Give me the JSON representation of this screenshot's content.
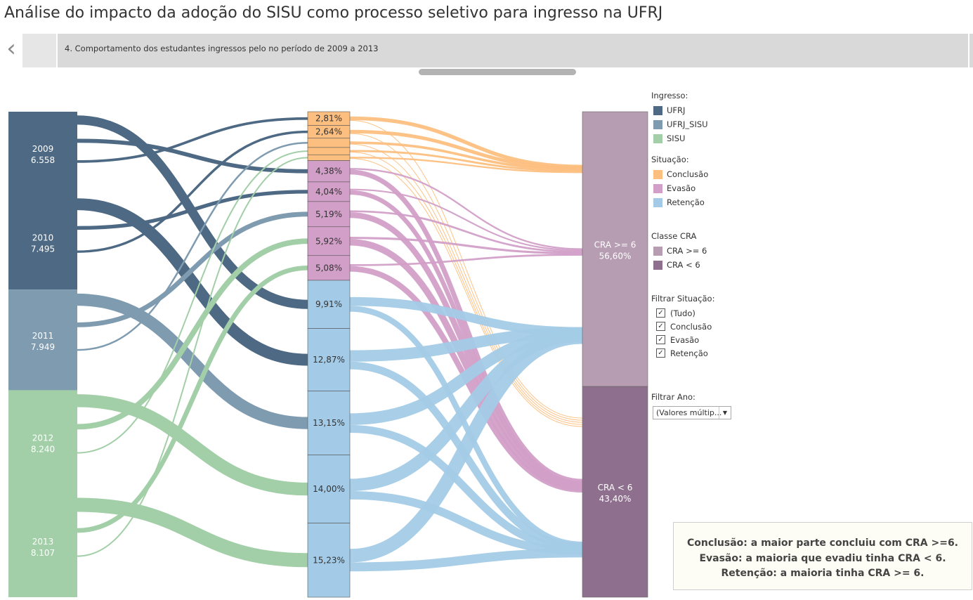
{
  "page": {
    "title": "Análise do impacto da adoção do SISU como processo seletivo para ingresso na UFRJ"
  },
  "story": {
    "back_icon": "chevron-left-icon",
    "current_point": "4. Comportamento dos estudantes ingressos pelo no período de 2009 a 2013"
  },
  "colors": {
    "UFRJ": "#4e6983",
    "UFRJ_SISU": "#7f9bb0",
    "SISU": "#a2cfa7",
    "Conclusao": "#fdbf7f",
    "Evasao": "#d29fc8",
    "Retencao": "#a3cbe7",
    "CRA_ge6": "#b69db2",
    "CRA_lt6": "#8e6f8d"
  },
  "chart_data": {
    "type": "sankey",
    "years": [
      {
        "year": "2009",
        "count": "6.558",
        "ingresso": "UFRJ"
      },
      {
        "year": "2010",
        "count": "7.495",
        "ingresso": "UFRJ"
      },
      {
        "year": "2011",
        "count": "7.949",
        "ingresso": "UFRJ_SISU"
      },
      {
        "year": "2012",
        "count": "8.240",
        "ingresso": "SISU"
      },
      {
        "year": "2013",
        "count": "8.107",
        "ingresso": "SISU"
      }
    ],
    "ingresso_segments": [
      {
        "ingresso": "UFRJ",
        "years": [
          "2009",
          "2010"
        ]
      },
      {
        "ingresso": "UFRJ_SISU",
        "years": [
          "2011"
        ]
      },
      {
        "ingresso": "SISU",
        "years": [
          "2012",
          "2013"
        ]
      }
    ],
    "middle": [
      {
        "situacao": "Conclusao",
        "year": "2009",
        "label": "2,81%",
        "value": 2.81
      },
      {
        "situacao": "Conclusao",
        "year": "2010",
        "label": "2,64%",
        "value": 2.64
      },
      {
        "situacao": "Conclusao",
        "year": "2011",
        "label": "",
        "value": 1.9
      },
      {
        "situacao": "Conclusao",
        "year": "2012",
        "label": "",
        "value": 1.5
      },
      {
        "situacao": "Conclusao",
        "year": "2013",
        "label": "",
        "value": 1.2
      },
      {
        "situacao": "Evasao",
        "year": "2009",
        "label": "4,38%",
        "value": 4.38
      },
      {
        "situacao": "Evasao",
        "year": "2010",
        "label": "4,04%",
        "value": 4.04
      },
      {
        "situacao": "Evasao",
        "year": "2011",
        "label": "5,19%",
        "value": 5.19
      },
      {
        "situacao": "Evasao",
        "year": "2012",
        "label": "5,92%",
        "value": 5.92
      },
      {
        "situacao": "Evasao",
        "year": "2013",
        "label": "5,08%",
        "value": 5.08
      },
      {
        "situacao": "Retencao",
        "year": "2009",
        "label": "9,91%",
        "value": 9.91
      },
      {
        "situacao": "Retencao",
        "year": "2010",
        "label": "12,87%",
        "value": 12.87
      },
      {
        "situacao": "Retencao",
        "year": "2011",
        "label": "13,15%",
        "value": 13.15
      },
      {
        "situacao": "Retencao",
        "year": "2012",
        "label": "14,00%",
        "value": 14.0
      },
      {
        "situacao": "Retencao",
        "year": "2013",
        "label": "15,23%",
        "value": 15.23
      }
    ],
    "cra_classes": [
      {
        "name": "CRA >= 6",
        "label": "56,60%",
        "value": 56.6,
        "key": "CRA_ge6"
      },
      {
        "name": "CRA < 6",
        "label": "43,40%",
        "value": 43.4,
        "key": "CRA_lt6"
      }
    ],
    "cra_flows": [
      {
        "situacao": "Conclusao",
        "ge6_share": 0.9
      },
      {
        "situacao": "Evasao",
        "ge6_share": 0.25
      },
      {
        "situacao": "Retencao",
        "ge6_share": 0.6
      }
    ]
  },
  "legend": {
    "ingresso_title": "Ingresso:",
    "ingresso_items": [
      {
        "label": "UFRJ",
        "key": "UFRJ"
      },
      {
        "label": "UFRJ_SISU",
        "key": "UFRJ_SISU"
      },
      {
        "label": "SISU",
        "key": "SISU"
      }
    ],
    "situacao_title": "Situação:",
    "situacao_items": [
      {
        "label": "Conclusão",
        "key": "Conclusao"
      },
      {
        "label": "Evasão",
        "key": "Evasao"
      },
      {
        "label": "Retenção",
        "key": "Retencao"
      }
    ],
    "cra_title": "Classe CRA",
    "cra_items": [
      {
        "label": "CRA >= 6",
        "key": "CRA_ge6"
      },
      {
        "label": "CRA < 6",
        "key": "CRA_lt6"
      }
    ]
  },
  "filters": {
    "situacao_title": "Filtrar Situação:",
    "situacao_options": [
      {
        "label": "(Tudo)",
        "checked": true
      },
      {
        "label": "Conclusão",
        "checked": true
      },
      {
        "label": "Evasão",
        "checked": true
      },
      {
        "label": "Retenção",
        "checked": true
      }
    ],
    "year_title": "Filtrar Ano:",
    "year_value": "(Valores múltip...",
    "year_arrow_icon": "caret-down-icon"
  },
  "note": {
    "lines": [
      "Conclusão: a maior parte concluiu com CRA >=6.",
      "Evasão: a maioria que evadiu tinha CRA < 6.",
      "Retenção: a maioria tinha CRA >= 6."
    ]
  }
}
